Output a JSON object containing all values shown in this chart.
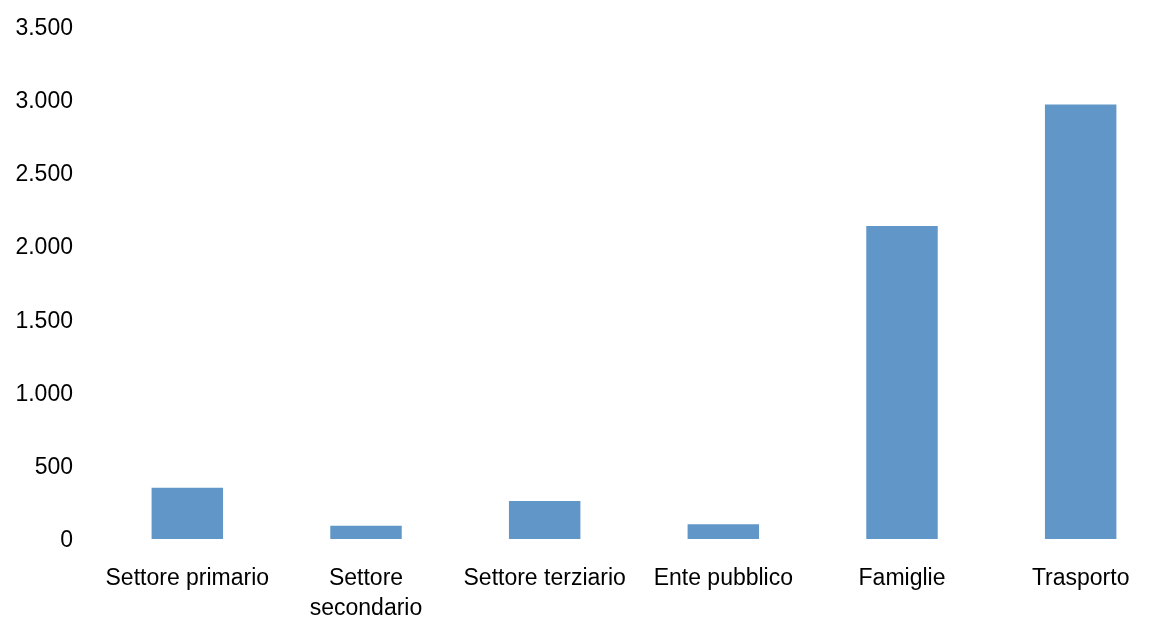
{
  "chart_data": {
    "type": "bar",
    "categories": [
      "Settore primario",
      "Settore secondario",
      "Settore terziario",
      "Ente pubblico",
      "Famiglie",
      "Trasporto"
    ],
    "values": [
      350,
      90,
      260,
      100,
      2140,
      2970
    ],
    "color": "#6096c8",
    "ylim": [
      0,
      3500
    ],
    "yticks": [
      0,
      500,
      {
        "value": 1000,
        "label": "1.000"
      },
      {
        "value": 1500,
        "label": "1.500"
      },
      {
        "value": 2000,
        "label": "2.000"
      },
      {
        "value": 2500,
        "label": "2.500"
      },
      {
        "value": 3000,
        "label": "3.000"
      },
      {
        "value": 3500,
        "label": "3.500"
      }
    ],
    "grid": false
  }
}
